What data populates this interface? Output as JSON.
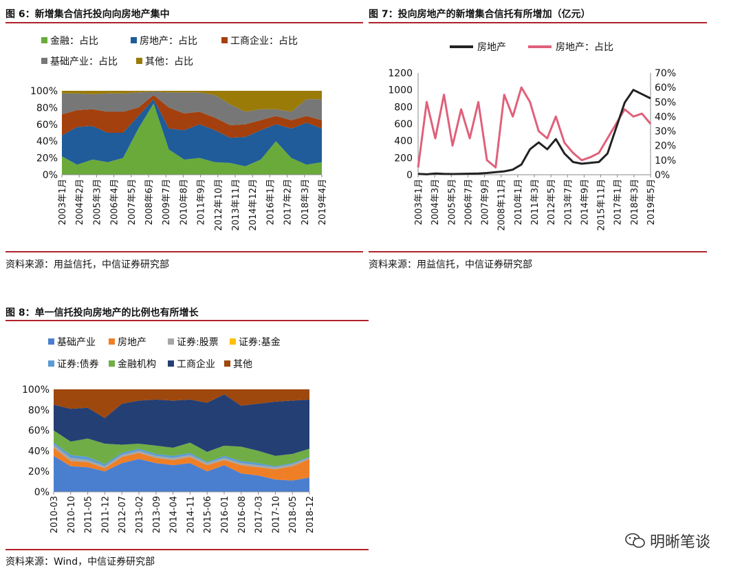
{
  "fig6": {
    "title": "图 6：新增集合信托投向向房地产集中",
    "source": "资料来源：用益信托，中信证券研究部",
    "chart_data": {
      "type": "area",
      "stacked": true,
      "legend": [
        "金融：占比",
        "房地产：占比",
        "工商企业：占比",
        "基础产业：占比",
        "其他：占比"
      ],
      "colors": [
        "#6aaa3a",
        "#1f5c99",
        "#a4400d",
        "#777777",
        "#9a7b08"
      ],
      "y_ticks": [
        "0%",
        "20%",
        "40%",
        "60%",
        "80%",
        "100%"
      ],
      "ylim": [
        0,
        100
      ],
      "x_ticks": [
        "2003年1月",
        "2004年2月",
        "2005年3月",
        "2006年4月",
        "2007年5月",
        "2008年6月",
        "2009年7月",
        "2010年8月",
        "2011年9月",
        "2012年10月",
        "2013年11月",
        "2014年12月",
        "2016年1月",
        "2017年2月",
        "2018年3月",
        "2019年4月"
      ],
      "series": [
        {
          "name": "金融：占比",
          "values": [
            22,
            12,
            18,
            15,
            20,
            55,
            85,
            30,
            18,
            20,
            15,
            14,
            10,
            18,
            40,
            20,
            12,
            15
          ]
        },
        {
          "name": "房地产：占比",
          "values": [
            25,
            45,
            40,
            35,
            30,
            15,
            5,
            25,
            35,
            40,
            38,
            30,
            35,
            35,
            20,
            35,
            50,
            40
          ]
        },
        {
          "name": "工商企业：占比",
          "values": [
            25,
            20,
            20,
            25,
            25,
            10,
            5,
            25,
            20,
            15,
            15,
            15,
            15,
            12,
            10,
            10,
            8,
            10
          ]
        },
        {
          "name": "基础产业：占比",
          "values": [
            25,
            20,
            18,
            22,
            22,
            18,
            4,
            18,
            25,
            23,
            27,
            25,
            15,
            13,
            8,
            10,
            20,
            25
          ]
        },
        {
          "name": "其他：占比",
          "values": [
            3,
            3,
            4,
            3,
            3,
            2,
            1,
            2,
            2,
            2,
            5,
            16,
            25,
            22,
            22,
            25,
            10,
            10
          ]
        }
      ]
    }
  },
  "fig7": {
    "title": "图 7：投向房地产的新增集合信托有所增加（亿元）",
    "chart_data": {
      "type": "line",
      "legend": [
        "房地产",
        "房地产：占比"
      ],
      "colors": [
        "#222222",
        "#e0607a"
      ],
      "y_left_ticks": [
        "0",
        "200",
        "400",
        "600",
        "800",
        "1000",
        "1200"
      ],
      "ylim_left": [
        0,
        1200
      ],
      "y_right_ticks": [
        "0%",
        "10%",
        "20%",
        "30%",
        "40%",
        "50%",
        "60%",
        "70%"
      ],
      "ylim_right": [
        0,
        70
      ],
      "x_ticks": [
        "2003年1月",
        "2004年3月",
        "2005年5月",
        "2006年7月",
        "2007年9月",
        "2008年11月",
        "2010年1月",
        "2011年3月",
        "2012年5月",
        "2013年7月",
        "2014年9月",
        "2015年11月",
        "2017年1月",
        "2018年3月",
        "2019年5月"
      ],
      "series": [
        {
          "name": "房地产",
          "axis": "left",
          "values": [
            10,
            5,
            15,
            10,
            8,
            10,
            12,
            15,
            20,
            30,
            40,
            60,
            120,
            300,
            380,
            300,
            420,
            250,
            150,
            130,
            140,
            150,
            250,
            550,
            850,
            1000,
            950,
            900
          ]
        },
        {
          "name": "房地产：占比",
          "axis": "right",
          "values": [
            5,
            50,
            25,
            55,
            20,
            45,
            25,
            50,
            10,
            5,
            55,
            40,
            60,
            50,
            30,
            25,
            40,
            22,
            15,
            10,
            12,
            15,
            25,
            35,
            45,
            40,
            42,
            35
          ]
        }
      ]
    }
  },
  "fig8": {
    "title": "图 8：单一信托投向房地产的比例也有所增长",
    "source": "资料来源：Wind，中信证券研究部",
    "chart_data": {
      "type": "area",
      "stacked": true,
      "legend": [
        "基础产业",
        "房地产",
        "证券:股票",
        "证券:基金",
        "证券:债券",
        "金融机构",
        "工商企业",
        "其他"
      ],
      "colors": [
        "#4a7fd0",
        "#ef7f27",
        "#a6a6a6",
        "#ffc000",
        "#5b9bd5",
        "#70ad47",
        "#243f73",
        "#9e480e"
      ],
      "y_ticks": [
        "0%",
        "20%",
        "40%",
        "60%",
        "80%",
        "100%"
      ],
      "ylim": [
        0,
        100
      ],
      "x_ticks": [
        "2010-03",
        "2010-10",
        "2011-05",
        "2011-12",
        "2012-07",
        "2013-02",
        "2013-09",
        "2014-04",
        "2014-11",
        "2015-06",
        "2016-01",
        "2016-08",
        "2017-03",
        "2017-10",
        "2018-05",
        "2018-12"
      ],
      "series": [
        {
          "name": "基础产业",
          "values": [
            35,
            25,
            24,
            20,
            28,
            32,
            28,
            26,
            28,
            20,
            26,
            18,
            16,
            12,
            11,
            14
          ]
        },
        {
          "name": "房地产",
          "values": [
            8,
            5,
            5,
            3,
            6,
            6,
            5,
            5,
            6,
            6,
            5,
            8,
            8,
            10,
            14,
            18
          ]
        },
        {
          "name": "证券:股票",
          "values": [
            3,
            3,
            2,
            2,
            2,
            2,
            2,
            2,
            2,
            2,
            2,
            2,
            2,
            2,
            2,
            1
          ]
        },
        {
          "name": "证券:基金",
          "values": [
            0,
            0,
            0,
            0,
            0,
            0,
            0,
            0,
            0,
            0,
            0,
            0,
            0,
            0,
            0,
            0
          ]
        },
        {
          "name": "证券:债券",
          "values": [
            2,
            3,
            3,
            2,
            2,
            2,
            2,
            2,
            2,
            1,
            2,
            2,
            2,
            1,
            1,
            1
          ]
        },
        {
          "name": "金融机构",
          "values": [
            12,
            13,
            18,
            20,
            8,
            5,
            8,
            8,
            10,
            10,
            10,
            14,
            12,
            10,
            9,
            8
          ]
        },
        {
          "name": "工商企业",
          "values": [
            25,
            32,
            30,
            25,
            40,
            42,
            45,
            46,
            42,
            48,
            50,
            40,
            46,
            53,
            52,
            48
          ]
        },
        {
          "name": "其他",
          "values": [
            15,
            19,
            18,
            28,
            14,
            11,
            10,
            11,
            10,
            13,
            5,
            16,
            14,
            12,
            11,
            10
          ]
        }
      ]
    }
  },
  "source7": "资料来源：用益信托，中信证券研究部",
  "watermark": "明晰笔谈"
}
